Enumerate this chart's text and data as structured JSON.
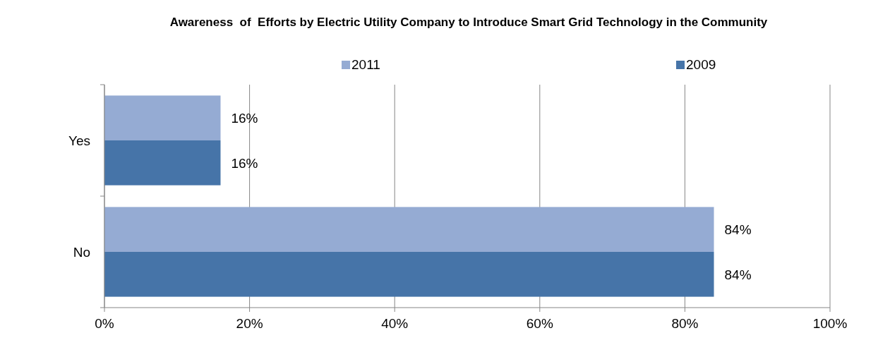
{
  "chart_data": {
    "type": "bar",
    "orientation": "horizontal",
    "title": "Awareness  of  Efforts by Electric Utility Company to Introduce Smart Grid Technology in the Community",
    "categories": [
      "Yes",
      "No"
    ],
    "series": [
      {
        "name": "2011",
        "color": "#95abd3",
        "values": [
          16,
          84
        ],
        "value_labels": [
          "16%",
          "84%"
        ]
      },
      {
        "name": "2009",
        "color": "#4674a8",
        "values": [
          16,
          84
        ],
        "value_labels": [
          "16%",
          "84%"
        ]
      }
    ],
    "xlim": [
      0,
      100
    ],
    "xticks": [
      {
        "value": 0,
        "label": "0%"
      },
      {
        "value": 20,
        "label": "20%"
      },
      {
        "value": 40,
        "label": "40%"
      },
      {
        "value": 60,
        "label": "60%"
      },
      {
        "value": 80,
        "label": "80%"
      },
      {
        "value": 100,
        "label": "100%"
      }
    ],
    "grid": "x",
    "legend": "top"
  }
}
